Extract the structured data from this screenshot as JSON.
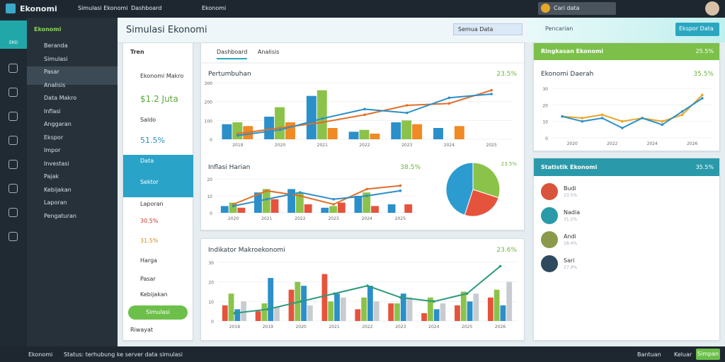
{
  "topbar": {
    "brand": "Ekonomi",
    "nav": [
      "Simulasi Ekonomi",
      "Dashboard",
      "Ekonomi"
    ],
    "search": "Cari data"
  },
  "sidebar": {
    "badge": "EKO",
    "title": "Ekonomi",
    "items": [
      "Beranda",
      "Simulasi",
      "Pasar",
      "Analisis",
      "Data Makro",
      "Inflasi",
      "Anggaran",
      "Ekspor",
      "Impor",
      "Investasi",
      "Pajak",
      "Kebijakan",
      "Laporan",
      "Pengaturan"
    ]
  },
  "header": {
    "title": "Simulasi Ekonomi",
    "filter": "Semua Data",
    "button": "Ekspor Data",
    "search": "Pencarian"
  },
  "left_panel": {
    "title": "Tren",
    "items": [
      "Ekonomi Makro",
      "$1.2 Juta",
      "Saldo",
      "51.5%",
      "Data",
      "Sektor",
      "Laporan",
      "30.5%",
      "31.5%",
      "Harga",
      "Pasar",
      "Kebijakan"
    ],
    "button": "Simulasi",
    "footer": "Riwayat"
  },
  "main_panel": {
    "tabs": [
      "Dashboard",
      "Analisis"
    ],
    "chart1": {
      "title": "Pertumbuhan",
      "value": "23.5%",
      "ylim": [
        0,
        300
      ],
      "yticks": [
        0,
        100,
        200,
        300
      ],
      "categories": [
        "2019",
        "2020",
        "2021",
        "2022",
        "2023",
        "2024",
        "2025"
      ],
      "bars": [
        {
          "color": "#2b8fc9",
          "values": [
            80,
            120,
            230,
            40,
            90,
            60,
            null
          ]
        },
        {
          "color": "#8bc34a",
          "values": [
            90,
            170,
            260,
            50,
            100,
            null,
            null
          ]
        },
        {
          "color": "#f08a24",
          "values": [
            70,
            90,
            60,
            30,
            80,
            70,
            null
          ]
        }
      ],
      "lines": [
        {
          "color": "#e0702a",
          "values": [
            30,
            60,
            90,
            130,
            180,
            190,
            260
          ]
        },
        {
          "color": "#2b8fc9",
          "values": [
            20,
            50,
            110,
            160,
            140,
            220,
            240
          ]
        }
      ]
    },
    "chart2": {
      "title": "Inflasi Harian",
      "value": "38.5%",
      "ylim": [
        0,
        20
      ],
      "yticks": [
        0,
        10,
        20
      ],
      "categories": [
        "2020",
        "2021",
        "2022",
        "2023",
        "2024",
        "2025"
      ],
      "bars": [
        {
          "color": "#2b8fc9",
          "values": [
            4,
            12,
            14,
            3,
            10,
            5
          ]
        },
        {
          "color": "#8bc34a",
          "values": [
            6,
            14,
            12,
            4,
            12,
            null
          ]
        },
        {
          "color": "#e5533d",
          "values": [
            3,
            8,
            5,
            6,
            4,
            5
          ]
        }
      ],
      "lines": [
        {
          "color": "#e0702a",
          "values": [
            5,
            13,
            10,
            5,
            14,
            16
          ]
        },
        {
          "color": "#2b8fc9",
          "values": [
            4,
            8,
            12,
            8,
            10,
            13
          ]
        }
      ]
    },
    "pie": {
      "label": "23.5%",
      "values": [
        30,
        25,
        45
      ],
      "colors": [
        "#8bc34a",
        "#e5533d",
        "#2b9bd0"
      ]
    }
  },
  "lower_panel": {
    "title": "Indikator Makroekonomi",
    "value": "23.6%",
    "ylim": [
      0,
      30
    ],
    "yticks": [
      0,
      10,
      20,
      30
    ],
    "categories": [
      "2018",
      "2019",
      "2020",
      "2021",
      "2022",
      "2023",
      "2024",
      "2025",
      "2026"
    ],
    "bars": [
      {
        "color": "#e5533d",
        "values": [
          8,
          5,
          16,
          24,
          6,
          9,
          4,
          8,
          12
        ]
      },
      {
        "color": "#8bc34a",
        "values": [
          14,
          9,
          20,
          10,
          12,
          9,
          12,
          15,
          16
        ]
      },
      {
        "color": "#2b8fc9",
        "values": [
          6,
          22,
          18,
          14,
          18,
          14,
          6,
          10,
          8
        ]
      },
      {
        "color": "#c8ccd0",
        "values": [
          10,
          7,
          8,
          12,
          10,
          12,
          9,
          14,
          20
        ]
      }
    ],
    "lines": [
      {
        "color": "#2a9a7a",
        "values": [
          4,
          6,
          10,
          14,
          18,
          12,
          10,
          14,
          28
        ]
      }
    ]
  },
  "right_chart": {
    "header": "Ringkasan Ekonomi",
    "header_value": "25.5%",
    "title": "Ekonomi Daerah",
    "value": "35.5%",
    "ylim": [
      0,
      30
    ],
    "yticks": [
      0,
      10,
      20,
      30
    ],
    "categories": [
      "2020",
      "2022",
      "2024",
      "2026"
    ],
    "lines": [
      {
        "color": "#e8a628",
        "values": [
          13,
          12,
          14,
          10,
          12,
          10,
          14,
          26
        ]
      },
      {
        "color": "#2b8fc9",
        "values": [
          13,
          10,
          12,
          6,
          12,
          8,
          16,
          24
        ]
      }
    ]
  },
  "right_list": {
    "header": "Statistik Ekonomi",
    "header_value": "35.5%",
    "items": [
      {
        "name": "Budi",
        "sub": "23.5%",
        "color": "#d9543c"
      },
      {
        "name": "Nadia",
        "sub": "31.2%",
        "color": "#2a9aa8"
      },
      {
        "name": "Andi",
        "sub": "18.4%",
        "color": "#8a9a4a"
      },
      {
        "name": "Sari",
        "sub": "27.9%",
        "color": "#2f4a5e"
      }
    ]
  },
  "bottombar": {
    "brand": "Ekonomi",
    "status": "Status: terhubung ke server data simulasi",
    "links": [
      "Bantuan",
      "Keluar"
    ],
    "button": "Simpan"
  }
}
